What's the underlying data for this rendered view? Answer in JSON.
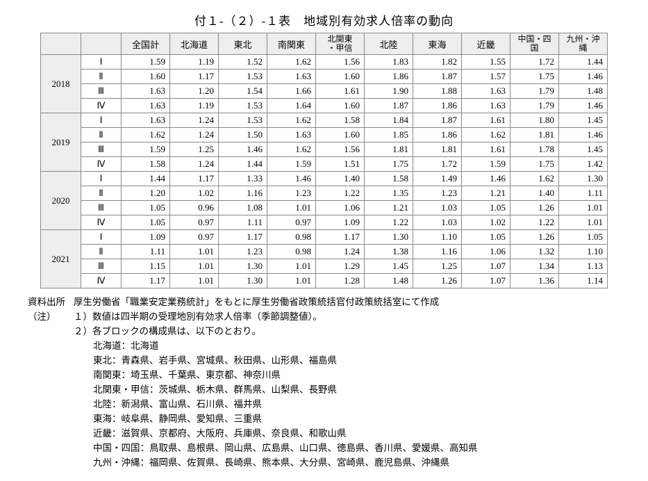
{
  "title": "付１-（２）-１表　地域別有効求人倍率の動向",
  "columns": [
    "全国計",
    "北海道",
    "東北",
    "南関東",
    "北関東\n・甲信",
    "北陸",
    "東海",
    "近畿",
    "中国・四国",
    "九州・沖縄"
  ],
  "years": [
    {
      "year": "2018",
      "quarters": [
        {
          "q": "Ⅰ",
          "v": [
            "1.59",
            "1.19",
            "1.52",
            "1.62",
            "1.56",
            "1.83",
            "1.82",
            "1.55",
            "1.72",
            "1.44"
          ]
        },
        {
          "q": "Ⅱ",
          "v": [
            "1.60",
            "1.17",
            "1.53",
            "1.63",
            "1.60",
            "1.86",
            "1.87",
            "1.57",
            "1.75",
            "1.46"
          ]
        },
        {
          "q": "Ⅲ",
          "v": [
            "1.63",
            "1.20",
            "1.54",
            "1.66",
            "1.61",
            "1.90",
            "1.88",
            "1.63",
            "1.79",
            "1.48"
          ]
        },
        {
          "q": "Ⅳ",
          "v": [
            "1.63",
            "1.19",
            "1.53",
            "1.64",
            "1.60",
            "1.87",
            "1.86",
            "1.63",
            "1.79",
            "1.46"
          ]
        }
      ]
    },
    {
      "year": "2019",
      "quarters": [
        {
          "q": "Ⅰ",
          "v": [
            "1.63",
            "1.24",
            "1.53",
            "1.62",
            "1.58",
            "1.84",
            "1.87",
            "1.61",
            "1.80",
            "1.45"
          ]
        },
        {
          "q": "Ⅱ",
          "v": [
            "1.62",
            "1.24",
            "1.50",
            "1.63",
            "1.60",
            "1.85",
            "1.86",
            "1.62",
            "1.81",
            "1.46"
          ]
        },
        {
          "q": "Ⅲ",
          "v": [
            "1.59",
            "1.25",
            "1.46",
            "1.62",
            "1.56",
            "1.81",
            "1.81",
            "1.61",
            "1.78",
            "1.45"
          ]
        },
        {
          "q": "Ⅳ",
          "v": [
            "1.58",
            "1.24",
            "1.44",
            "1.59",
            "1.51",
            "1.75",
            "1.72",
            "1.59",
            "1.75",
            "1.42"
          ]
        }
      ]
    },
    {
      "year": "2020",
      "quarters": [
        {
          "q": "Ⅰ",
          "v": [
            "1.44",
            "1.17",
            "1.33",
            "1.46",
            "1.40",
            "1.58",
            "1.49",
            "1.46",
            "1.62",
            "1.30"
          ]
        },
        {
          "q": "Ⅱ",
          "v": [
            "1.20",
            "1.02",
            "1.16",
            "1.23",
            "1.22",
            "1.35",
            "1.23",
            "1.21",
            "1.40",
            "1.11"
          ]
        },
        {
          "q": "Ⅲ",
          "v": [
            "1.05",
            "0.96",
            "1.08",
            "1.01",
            "1.06",
            "1.21",
            "1.03",
            "1.05",
            "1.26",
            "1.01"
          ]
        },
        {
          "q": "Ⅳ",
          "v": [
            "1.05",
            "0.97",
            "1.11",
            "0.97",
            "1.09",
            "1.22",
            "1.03",
            "1.02",
            "1.22",
            "1.01"
          ]
        }
      ]
    },
    {
      "year": "2021",
      "quarters": [
        {
          "q": "Ⅰ",
          "v": [
            "1.09",
            "0.97",
            "1.17",
            "0.98",
            "1.17",
            "1.30",
            "1.10",
            "1.05",
            "1.26",
            "1.05"
          ]
        },
        {
          "q": "Ⅱ",
          "v": [
            "1.11",
            "1.01",
            "1.23",
            "0.98",
            "1.24",
            "1.38",
            "1.16",
            "1.06",
            "1.32",
            "1.10"
          ]
        },
        {
          "q": "Ⅲ",
          "v": [
            "1.15",
            "1.01",
            "1.30",
            "1.01",
            "1.29",
            "1.45",
            "1.25",
            "1.07",
            "1.34",
            "1.13"
          ]
        },
        {
          "q": "Ⅳ",
          "v": [
            "1.17",
            "1.01",
            "1.30",
            "1.01",
            "1.28",
            "1.48",
            "1.26",
            "1.07",
            "1.36",
            "1.14"
          ]
        }
      ]
    }
  ],
  "source_label": "資料出所",
  "source_text": "厚生労働省「職業安定業務統計」をもとに厚生労働省政策統括官付政策統括室にて作成",
  "note_label": "（注）",
  "note1": "１）数値は四半期の受理地別有効求人倍率（季節調整値）。",
  "note2": "２）各ブロックの構成県は、以下のとおり。",
  "blocks": [
    "北海道：北海道",
    "東北：青森県、岩手県、宮城県、秋田県、山形県、福島県",
    "南関東：埼玉県、千葉県、東京都、神奈川県",
    "北関東・甲信：茨城県、栃木県、群馬県、山梨県、長野県",
    "北陸：新潟県、富山県、石川県、福井県",
    "東海：岐阜県、静岡県、愛知県、三重県",
    "近畿：滋賀県、京都府、大阪府、兵庫県、奈良県、和歌山県",
    "中国・四国：鳥取県、島根県、岡山県、広島県、山口県、徳島県、香川県、愛媛県、高知県",
    "九州・沖縄：福岡県、佐賀県、長崎県、熊本県、大分県、宮崎県、鹿児島県、沖縄県"
  ]
}
